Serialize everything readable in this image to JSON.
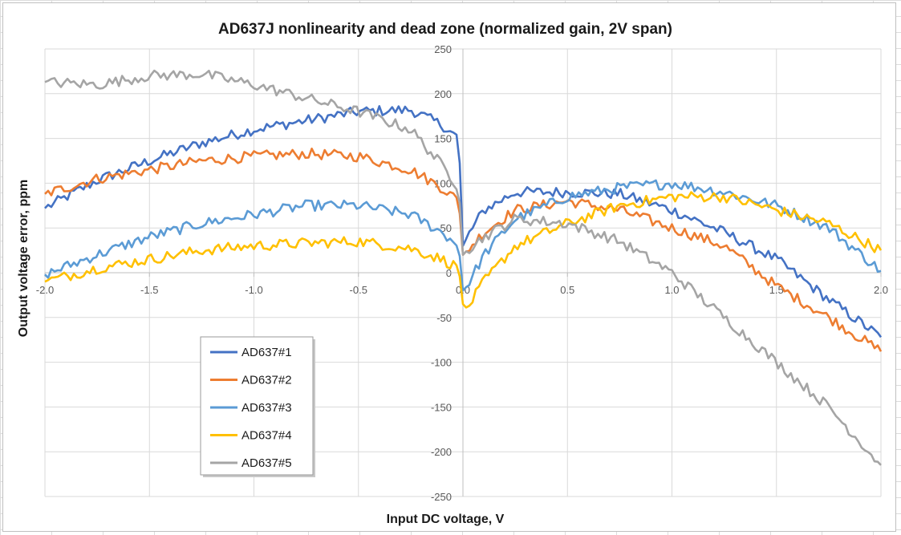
{
  "chart_data": {
    "type": "line",
    "title": "AD637J nonlinearity and dead zone (normalized gain, 2V span)",
    "xlabel": "Input DC voltage, V",
    "ylabel": "Output voltage error, ppm",
    "xlim": [
      -2.0,
      2.0
    ],
    "ylim": [
      -250,
      250
    ],
    "x_ticks": [
      -2.0,
      -1.5,
      -1.0,
      -0.5,
      0.0,
      0.5,
      1.0,
      1.5,
      2.0
    ],
    "x_tick_labels": [
      "-2.0",
      "-1.5",
      "-1.0",
      "-0.5",
      "0.0",
      "0.5",
      "1.0",
      "1.5",
      "2.0"
    ],
    "y_ticks": [
      250,
      200,
      150,
      100,
      50,
      0,
      -50,
      -100,
      -150,
      -200,
      -250
    ],
    "y_tick_labels": [
      "250",
      "200",
      "150",
      "100",
      "50",
      "0",
      "-50",
      "-100",
      "-150",
      "-200",
      "-250"
    ],
    "grid": true,
    "legend_position": "lower-left",
    "x": [
      -2.0,
      -1.75,
      -1.5,
      -1.25,
      -1.0,
      -0.75,
      -0.5,
      -0.25,
      -0.1,
      -0.02,
      0.0,
      0.02,
      0.1,
      0.25,
      0.5,
      0.75,
      1.0,
      1.25,
      1.5,
      1.75,
      2.0
    ],
    "series": [
      {
        "name": "AD637#1",
        "color": "#4472C4",
        "values": [
          72,
          103,
          125,
          145,
          160,
          170,
          180,
          182,
          165,
          150,
          30,
          40,
          70,
          90,
          90,
          88,
          70,
          45,
          15,
          -30,
          -72
        ]
      },
      {
        "name": "AD637#2",
        "color": "#ED7D31",
        "values": [
          88,
          105,
          115,
          125,
          130,
          133,
          130,
          115,
          95,
          80,
          20,
          25,
          45,
          70,
          80,
          70,
          50,
          30,
          -15,
          -50,
          -88
        ]
      },
      {
        "name": "AD637#3",
        "color": "#5B9BD5",
        "values": [
          -2,
          20,
          40,
          55,
          65,
          75,
          75,
          65,
          45,
          30,
          -20,
          -15,
          20,
          60,
          85,
          95,
          100,
          90,
          75,
          50,
          2
        ]
      },
      {
        "name": "AD637#4",
        "color": "#FFC000",
        "values": [
          -10,
          5,
          15,
          25,
          30,
          33,
          35,
          27,
          15,
          5,
          -35,
          -40,
          -10,
          30,
          55,
          75,
          85,
          85,
          70,
          55,
          25
        ]
      },
      {
        "name": "AD637#5",
        "color": "#A5A5A5",
        "values": [
          213,
          210,
          220,
          222,
          210,
          195,
          180,
          160,
          120,
          95,
          20,
          25,
          40,
          60,
          55,
          35,
          0,
          -50,
          -100,
          -150,
          -215
        ]
      }
    ]
  }
}
